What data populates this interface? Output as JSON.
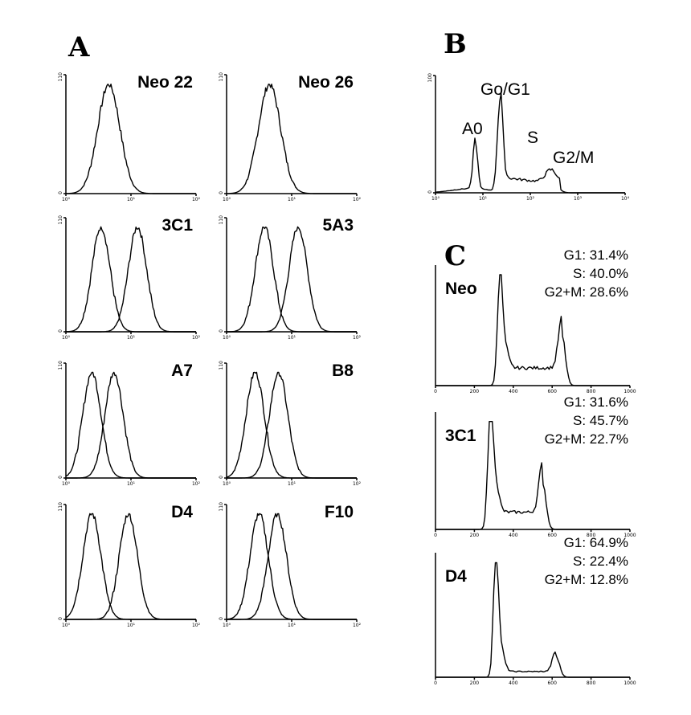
{
  "figure": {
    "panel_letters": {
      "a": "A",
      "b": "B",
      "c": "C"
    }
  },
  "chart_data": [
    {
      "panel": "A",
      "type": "line",
      "title": "Neo 22",
      "xscale": "log",
      "xticks": [
        "10⁰",
        "10¹",
        "10²"
      ],
      "yticks": [
        "0",
        "110"
      ],
      "series": [
        {
          "peaks": [
            0.33
          ]
        }
      ]
    },
    {
      "panel": "A",
      "type": "line",
      "title": "Neo 26",
      "xscale": "log",
      "xticks": [
        "10⁰",
        "10¹",
        "10²"
      ],
      "yticks": [
        "0",
        "110"
      ],
      "series": [
        {
          "peaks": [
            0.33
          ]
        }
      ]
    },
    {
      "panel": "A",
      "type": "line",
      "title": "3C1",
      "xscale": "log",
      "xticks": [
        "10⁰",
        "10¹",
        "10²"
      ],
      "yticks": [
        "0",
        "110"
      ],
      "series": [
        {
          "peaks": [
            0.27
          ]
        },
        {
          "peaks": [
            0.55
          ]
        }
      ]
    },
    {
      "panel": "A",
      "type": "line",
      "title": "5A3",
      "xscale": "log",
      "xticks": [
        "10⁰",
        "10¹",
        "10²"
      ],
      "yticks": [
        "0",
        "110"
      ],
      "series": [
        {
          "peaks": [
            0.29
          ]
        },
        {
          "peaks": [
            0.55
          ]
        }
      ]
    },
    {
      "panel": "A",
      "type": "line",
      "title": "A7",
      "xscale": "log",
      "xticks": [
        "10⁰",
        "10¹",
        "10²"
      ],
      "yticks": [
        "0",
        "110"
      ],
      "series": [
        {
          "peaks": [
            0.2
          ]
        },
        {
          "peaks": [
            0.37
          ]
        }
      ]
    },
    {
      "panel": "A",
      "type": "line",
      "title": "B8",
      "xscale": "log",
      "xticks": [
        "10⁰",
        "10¹",
        "10²"
      ],
      "yticks": [
        "0",
        "110"
      ],
      "series": [
        {
          "peaks": [
            0.22
          ]
        },
        {
          "peaks": [
            0.4
          ]
        }
      ]
    },
    {
      "panel": "A",
      "type": "line",
      "title": "D4",
      "xscale": "log",
      "xticks": [
        "10⁰",
        "10¹",
        "10²"
      ],
      "yticks": [
        "0",
        "110"
      ],
      "series": [
        {
          "peaks": [
            0.2
          ]
        },
        {
          "peaks": [
            0.48
          ]
        }
      ]
    },
    {
      "panel": "A",
      "type": "line",
      "title": "F10",
      "xscale": "log",
      "xticks": [
        "10⁰",
        "10¹",
        "10²"
      ],
      "yticks": [
        "0",
        "110"
      ],
      "series": [
        {
          "peaks": [
            0.25
          ]
        },
        {
          "peaks": [
            0.39
          ]
        }
      ]
    },
    {
      "panel": "B",
      "type": "line",
      "xscale": "log",
      "xticks": [
        "10⁰",
        "10¹",
        "10²",
        "10³",
        "10⁴"
      ],
      "yticks": [
        "0",
        "100"
      ],
      "annotations": [
        "A0",
        "Go/G1",
        "S",
        "G2/M"
      ],
      "series": [
        {
          "peaks": [
            0.21,
            0.34,
            0.61
          ]
        }
      ]
    },
    {
      "panel": "C",
      "type": "line",
      "title": "Neo",
      "xticks": [
        "0",
        "200",
        "400",
        "600",
        "800",
        "1000"
      ],
      "stats": {
        "g1": "G1: 31.4%",
        "s": "S:  40.0%",
        "g2m": "G2+M: 28.6%"
      },
      "series": [
        {
          "peaks": [
            0.33,
            0.65
          ]
        }
      ]
    },
    {
      "panel": "C",
      "type": "line",
      "title": "3C1",
      "xticks": [
        "0",
        "200",
        "400",
        "600",
        "800",
        "1000"
      ],
      "stats": {
        "g1": "G1: 31.6%",
        "s": "S:  45.7%",
        "g2m": "G2+M: 22.7%"
      },
      "series": [
        {
          "peaks": [
            0.28,
            0.55
          ]
        }
      ]
    },
    {
      "panel": "C",
      "type": "line",
      "title": "D4",
      "xticks": [
        "0",
        "200",
        "400",
        "600",
        "800",
        "1000"
      ],
      "stats": {
        "g1": "G1: 64.9%",
        "s": "S:  22.4%",
        "g2m": "G2+M: 12.8%"
      },
      "series": [
        {
          "peaks": [
            0.31,
            0.62
          ]
        }
      ]
    }
  ]
}
